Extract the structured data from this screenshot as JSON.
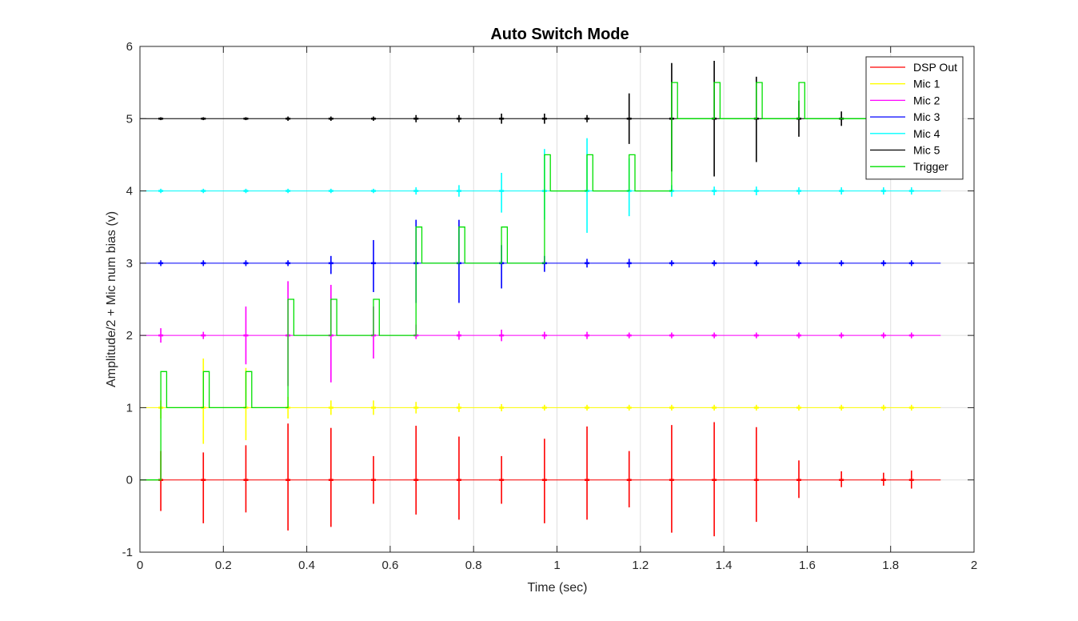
{
  "chart_data": {
    "type": "line",
    "title": "Auto Switch Mode",
    "xlabel": "Time (sec)",
    "ylabel": "Amplitude/2 + Mic num bias (v)",
    "xlim": [
      0,
      2
    ],
    "ylim": [
      -1,
      6
    ],
    "xticks": [
      0,
      0.2,
      0.4,
      0.6,
      0.8,
      1,
      1.2,
      1.4,
      1.6,
      1.8,
      2
    ],
    "xtick_labels": [
      "0",
      "0.2",
      "0.4",
      "0.6",
      "0.8",
      "1",
      "1.2",
      "1.4",
      "1.6",
      "1.8",
      "2"
    ],
    "yticks": [
      -1,
      0,
      1,
      2,
      3,
      4,
      5,
      6
    ],
    "ytick_labels": [
      "-1",
      "0",
      "1",
      "2",
      "3",
      "4",
      "5",
      "6"
    ],
    "grid": true,
    "legend_position": "top-right",
    "data_end_x": 1.92,
    "pulse_times": [
      0.05,
      0.152,
      0.254,
      0.355,
      0.458,
      0.56,
      0.662,
      0.765,
      0.867,
      0.97,
      1.072,
      1.173,
      1.275,
      1.377,
      1.478,
      1.58,
      1.682,
      1.783,
      1.85
    ],
    "series": [
      {
        "name": "DSP Out",
        "color": "#ff0000",
        "kind": "bursts",
        "baseline": 0,
        "bursts": [
          [
            0.05,
            0.4,
            -0.43
          ],
          [
            0.152,
            0.38,
            -0.6
          ],
          [
            0.254,
            0.48,
            -0.45
          ],
          [
            0.355,
            0.78,
            -0.7
          ],
          [
            0.458,
            0.72,
            -0.65
          ],
          [
            0.56,
            0.33,
            -0.33
          ],
          [
            0.662,
            0.75,
            -0.48
          ],
          [
            0.765,
            0.6,
            -0.55
          ],
          [
            0.867,
            0.33,
            -0.33
          ],
          [
            0.97,
            0.57,
            -0.6
          ],
          [
            1.072,
            0.74,
            -0.55
          ],
          [
            1.173,
            0.4,
            -0.38
          ],
          [
            1.275,
            0.76,
            -0.73
          ],
          [
            1.377,
            0.8,
            -0.78
          ],
          [
            1.478,
            0.73,
            -0.58
          ],
          [
            1.58,
            0.27,
            -0.25
          ],
          [
            1.682,
            0.12,
            -0.1
          ],
          [
            1.783,
            0.1,
            -0.08
          ],
          [
            1.85,
            0.13,
            -0.12
          ]
        ]
      },
      {
        "name": "Mic 1",
        "color": "#ffff00",
        "kind": "bursts",
        "baseline": 1,
        "bursts": [
          [
            0.05,
            1.1,
            0.85
          ],
          [
            0.152,
            1.68,
            0.5
          ],
          [
            0.254,
            1.55,
            0.55
          ],
          [
            0.355,
            1.15,
            0.85
          ],
          [
            0.458,
            1.1,
            0.9
          ],
          [
            0.56,
            1.1,
            0.9
          ],
          [
            0.662,
            1.08,
            0.92
          ],
          [
            0.765,
            1.06,
            0.94
          ],
          [
            0.867,
            1.05,
            0.95
          ],
          [
            0.97,
            1.04,
            0.96
          ],
          [
            1.072,
            1.04,
            0.96
          ],
          [
            1.173,
            1.04,
            0.96
          ],
          [
            1.275,
            1.04,
            0.96
          ],
          [
            1.377,
            1.04,
            0.96
          ],
          [
            1.478,
            1.04,
            0.96
          ],
          [
            1.58,
            1.04,
            0.96
          ],
          [
            1.682,
            1.04,
            0.96
          ],
          [
            1.783,
            1.04,
            0.96
          ],
          [
            1.85,
            1.04,
            0.96
          ]
        ]
      },
      {
        "name": "Mic 2",
        "color": "#ff00ff",
        "kind": "bursts",
        "baseline": 2,
        "bursts": [
          [
            0.05,
            2.1,
            1.9
          ],
          [
            0.152,
            2.05,
            1.95
          ],
          [
            0.254,
            2.4,
            1.6
          ],
          [
            0.355,
            2.75,
            1.3
          ],
          [
            0.458,
            2.7,
            1.35
          ],
          [
            0.56,
            2.4,
            1.68
          ],
          [
            0.662,
            2.15,
            1.95
          ],
          [
            0.765,
            2.06,
            1.94
          ],
          [
            0.867,
            2.08,
            1.92
          ],
          [
            0.97,
            2.05,
            1.95
          ],
          [
            1.072,
            2.05,
            1.95
          ],
          [
            1.173,
            2.04,
            1.96
          ],
          [
            1.275,
            2.04,
            1.96
          ],
          [
            1.377,
            2.04,
            1.96
          ],
          [
            1.478,
            2.04,
            1.96
          ],
          [
            1.58,
            2.04,
            1.96
          ],
          [
            1.682,
            2.04,
            1.96
          ],
          [
            1.783,
            2.04,
            1.96
          ],
          [
            1.85,
            2.04,
            1.96
          ]
        ]
      },
      {
        "name": "Mic 3",
        "color": "#0000ff",
        "kind": "bursts",
        "baseline": 3,
        "bursts": [
          [
            0.05,
            3.04,
            2.96
          ],
          [
            0.152,
            3.04,
            2.96
          ],
          [
            0.254,
            3.04,
            2.96
          ],
          [
            0.355,
            3.04,
            2.96
          ],
          [
            0.458,
            3.1,
            2.85
          ],
          [
            0.56,
            3.32,
            2.6
          ],
          [
            0.662,
            3.6,
            2.45
          ],
          [
            0.765,
            3.6,
            2.45
          ],
          [
            0.867,
            3.25,
            2.65
          ],
          [
            0.97,
            3.1,
            2.88
          ],
          [
            1.072,
            3.06,
            2.94
          ],
          [
            1.173,
            3.06,
            2.94
          ],
          [
            1.275,
            3.04,
            2.96
          ],
          [
            1.377,
            3.04,
            2.96
          ],
          [
            1.478,
            3.04,
            2.96
          ],
          [
            1.58,
            3.04,
            2.96
          ],
          [
            1.682,
            3.04,
            2.96
          ],
          [
            1.783,
            3.04,
            2.96
          ],
          [
            1.85,
            3.04,
            2.96
          ]
        ]
      },
      {
        "name": "Mic 4",
        "color": "#00ffff",
        "kind": "bursts",
        "baseline": 4,
        "bursts": [
          [
            0.05,
            4.03,
            3.97
          ],
          [
            0.152,
            4.03,
            3.97
          ],
          [
            0.254,
            4.03,
            3.97
          ],
          [
            0.355,
            4.03,
            3.97
          ],
          [
            0.458,
            4.03,
            3.97
          ],
          [
            0.56,
            4.03,
            3.97
          ],
          [
            0.662,
            4.05,
            3.95
          ],
          [
            0.765,
            4.08,
            3.92
          ],
          [
            0.867,
            4.25,
            3.7
          ],
          [
            0.97,
            4.58,
            3.6
          ],
          [
            1.072,
            4.73,
            3.42
          ],
          [
            1.173,
            4.45,
            3.65
          ],
          [
            1.275,
            4.08,
            3.92
          ],
          [
            1.377,
            4.06,
            3.94
          ],
          [
            1.478,
            4.06,
            3.94
          ],
          [
            1.58,
            4.05,
            3.95
          ],
          [
            1.682,
            4.05,
            3.95
          ],
          [
            1.783,
            4.05,
            3.95
          ],
          [
            1.85,
            4.05,
            3.95
          ]
        ]
      },
      {
        "name": "Mic 5",
        "color": "#000000",
        "kind": "bursts",
        "baseline": 5,
        "bursts": [
          [
            0.05,
            5.02,
            4.98
          ],
          [
            0.152,
            5.02,
            4.98
          ],
          [
            0.254,
            5.02,
            4.98
          ],
          [
            0.355,
            5.03,
            4.97
          ],
          [
            0.458,
            5.03,
            4.97
          ],
          [
            0.56,
            5.03,
            4.97
          ],
          [
            0.662,
            5.05,
            4.95
          ],
          [
            0.765,
            5.05,
            4.95
          ],
          [
            0.867,
            5.07,
            4.93
          ],
          [
            0.97,
            5.07,
            4.93
          ],
          [
            1.072,
            5.05,
            4.95
          ],
          [
            1.173,
            5.35,
            4.65
          ],
          [
            1.275,
            5.77,
            4.27
          ],
          [
            1.377,
            5.8,
            4.2
          ],
          [
            1.478,
            5.58,
            4.4
          ],
          [
            1.58,
            5.25,
            4.75
          ],
          [
            1.682,
            5.1,
            4.9
          ],
          [
            1.783,
            5.0,
            5.0
          ],
          [
            1.85,
            5.0,
            5.0
          ]
        ]
      },
      {
        "name": "Trigger",
        "color": "#00e000",
        "kind": "step",
        "points": [
          [
            0,
            0
          ],
          [
            0.05,
            0
          ],
          [
            0.05,
            1.5
          ],
          [
            0.064,
            1.5
          ],
          [
            0.064,
            1
          ],
          [
            0.152,
            1
          ],
          [
            0.152,
            1.5
          ],
          [
            0.166,
            1.5
          ],
          [
            0.166,
            1
          ],
          [
            0.254,
            1
          ],
          [
            0.254,
            1.5
          ],
          [
            0.268,
            1.5
          ],
          [
            0.268,
            1
          ],
          [
            0.355,
            1
          ],
          [
            0.355,
            2.5
          ],
          [
            0.369,
            2.5
          ],
          [
            0.369,
            2
          ],
          [
            0.458,
            2
          ],
          [
            0.458,
            2.5
          ],
          [
            0.472,
            2.5
          ],
          [
            0.472,
            2
          ],
          [
            0.56,
            2
          ],
          [
            0.56,
            2.5
          ],
          [
            0.574,
            2.5
          ],
          [
            0.574,
            2
          ],
          [
            0.662,
            2
          ],
          [
            0.662,
            3.5
          ],
          [
            0.676,
            3.5
          ],
          [
            0.676,
            3
          ],
          [
            0.765,
            3
          ],
          [
            0.765,
            3.5
          ],
          [
            0.779,
            3.5
          ],
          [
            0.779,
            3
          ],
          [
            0.867,
            3
          ],
          [
            0.867,
            3.5
          ],
          [
            0.881,
            3.5
          ],
          [
            0.881,
            3
          ],
          [
            0.97,
            3
          ],
          [
            0.97,
            4.5
          ],
          [
            0.984,
            4.5
          ],
          [
            0.984,
            4
          ],
          [
            1.072,
            4
          ],
          [
            1.072,
            4.5
          ],
          [
            1.086,
            4.5
          ],
          [
            1.086,
            4
          ],
          [
            1.173,
            4
          ],
          [
            1.173,
            4.5
          ],
          [
            1.187,
            4.5
          ],
          [
            1.187,
            4
          ],
          [
            1.275,
            4
          ],
          [
            1.275,
            5.5
          ],
          [
            1.289,
            5.5
          ],
          [
            1.289,
            5
          ],
          [
            1.377,
            5
          ],
          [
            1.377,
            5.5
          ],
          [
            1.391,
            5.5
          ],
          [
            1.391,
            5
          ],
          [
            1.478,
            5
          ],
          [
            1.478,
            5.5
          ],
          [
            1.492,
            5.5
          ],
          [
            1.492,
            5
          ],
          [
            1.58,
            5
          ],
          [
            1.58,
            5.5
          ],
          [
            1.594,
            5.5
          ],
          [
            1.594,
            5
          ],
          [
            1.92,
            5
          ]
        ]
      }
    ]
  }
}
